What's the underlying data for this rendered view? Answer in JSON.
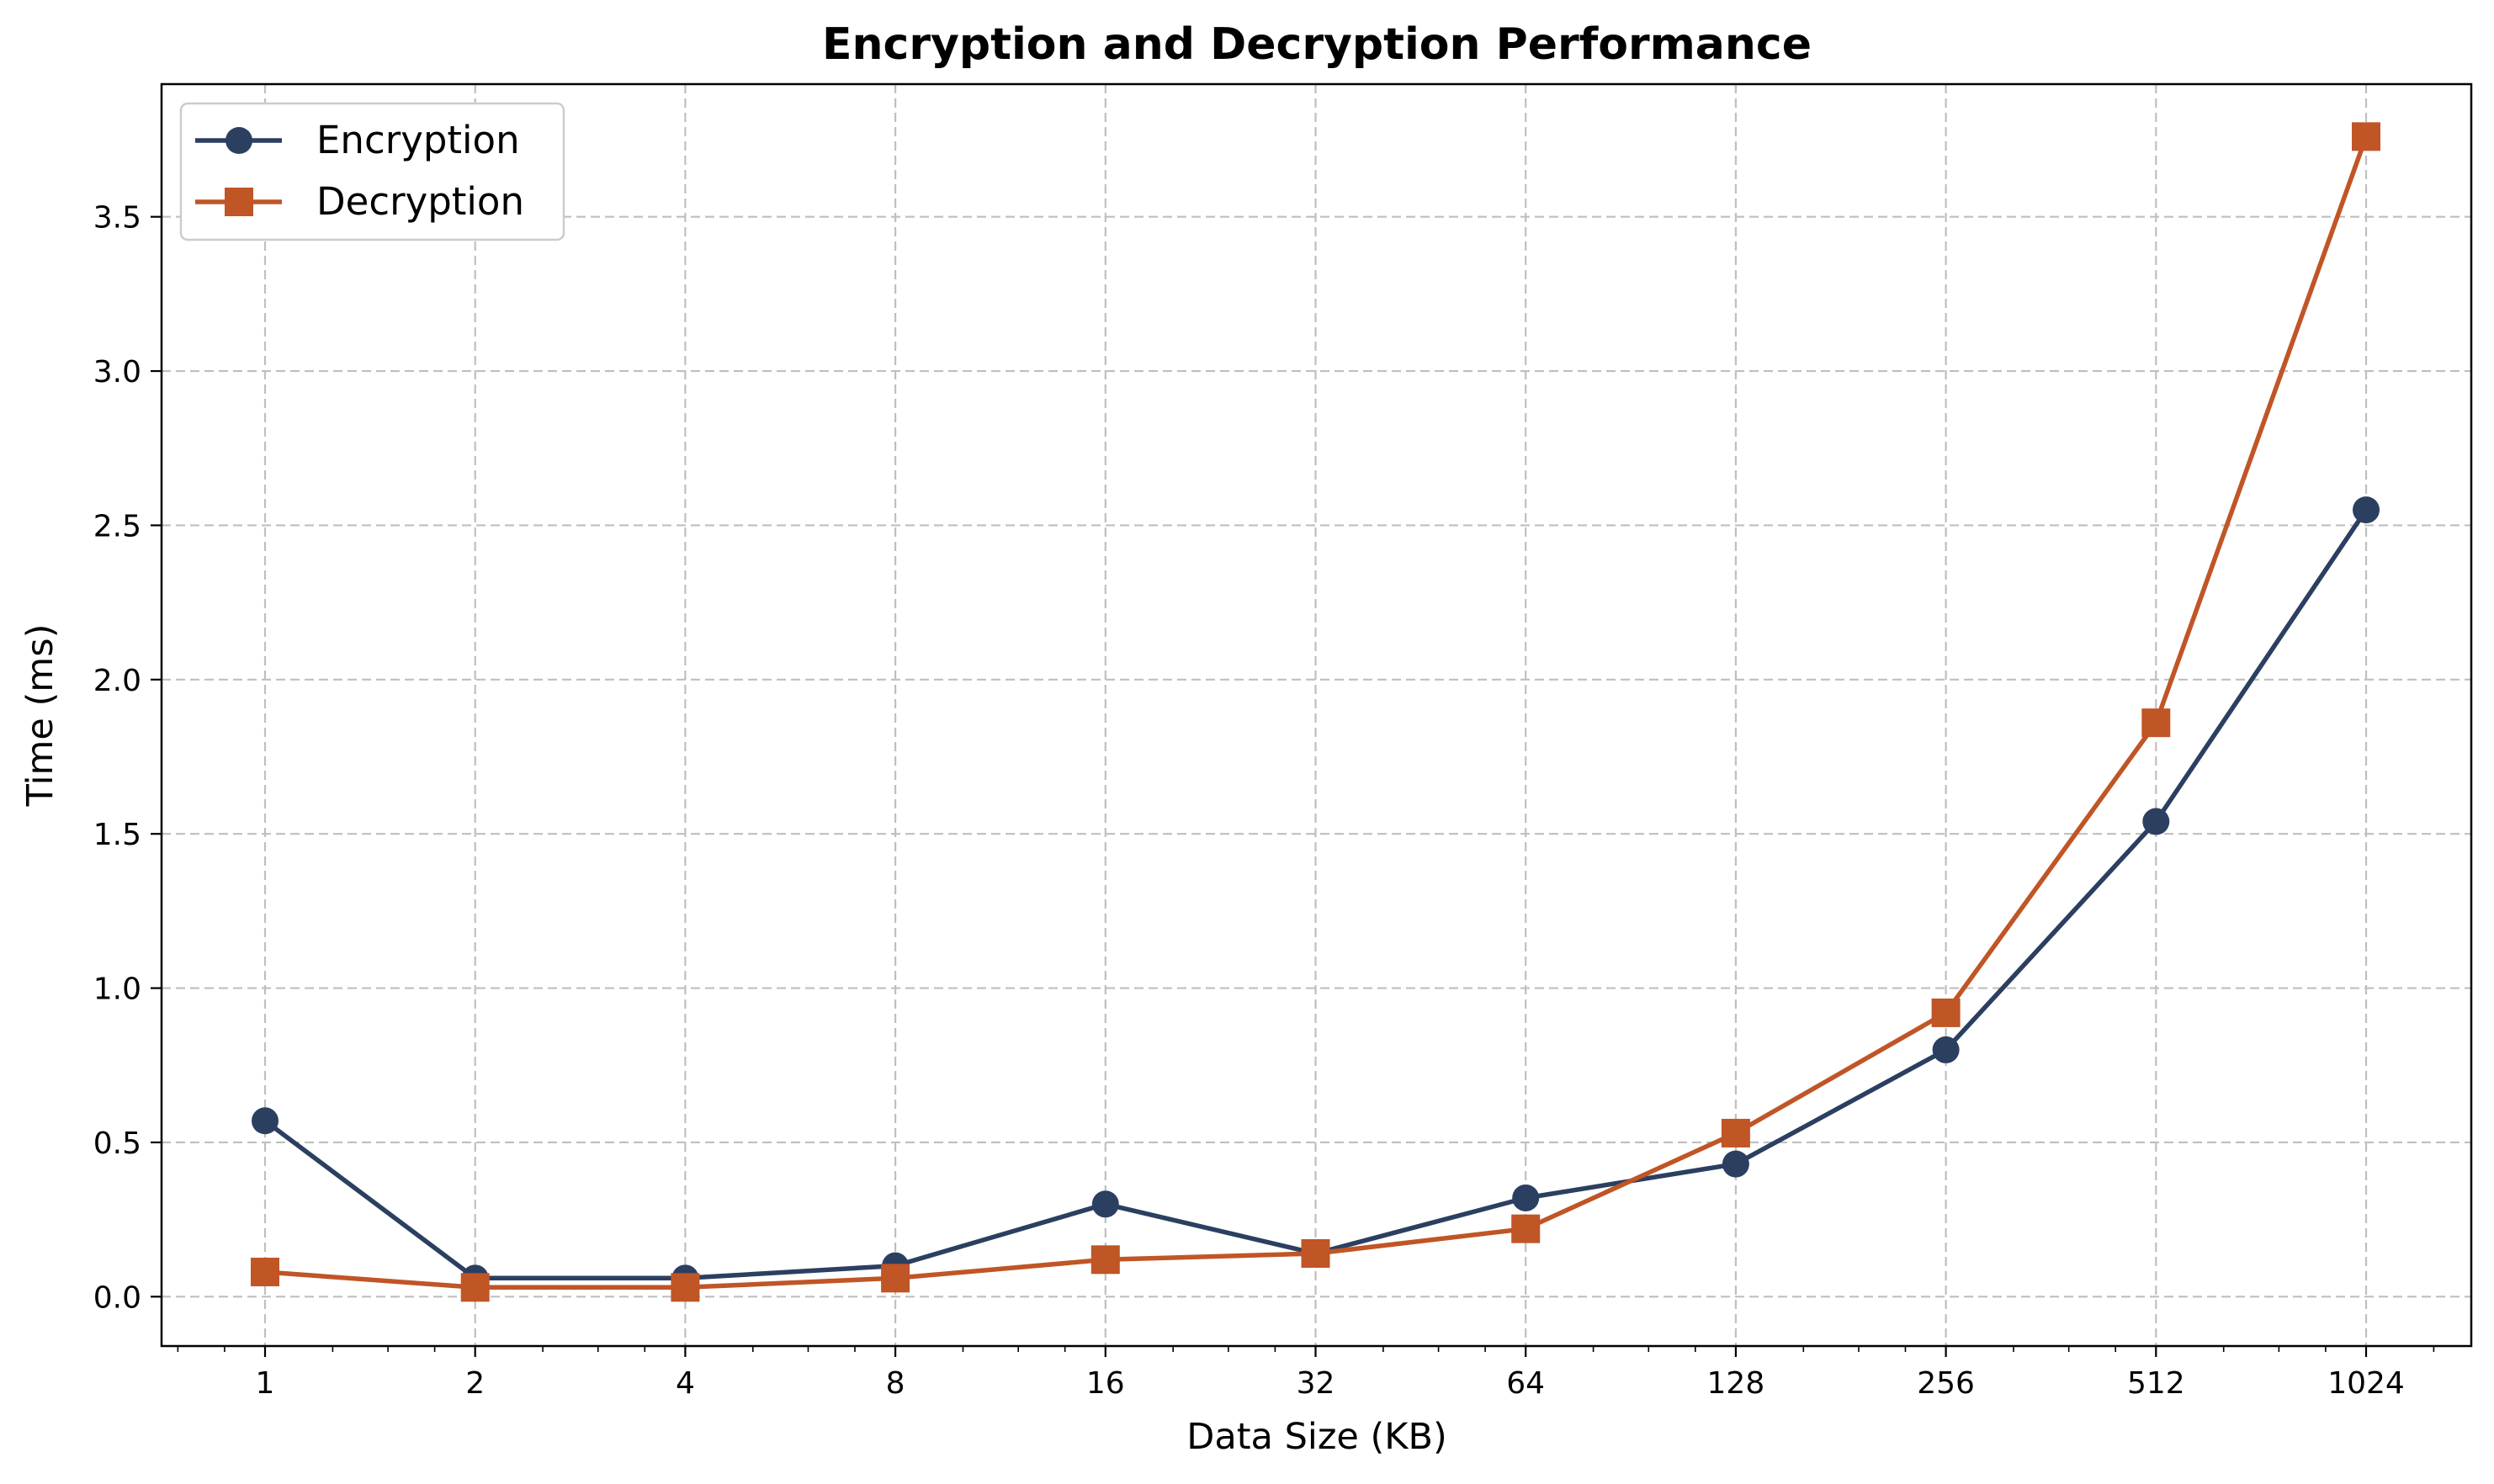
{
  "chart_data": {
    "type": "line",
    "title": "Encryption and Decryption Performance",
    "xlabel": "Data Size (KB)",
    "ylabel": "Time (ms)",
    "x_scale": "log2",
    "x": [
      1,
      2,
      4,
      8,
      16,
      32,
      64,
      128,
      256,
      512,
      1024
    ],
    "x_tick_labels": [
      "1",
      "2",
      "4",
      "8",
      "16",
      "32",
      "64",
      "128",
      "256",
      "512",
      "1024"
    ],
    "y_ticks": [
      0.0,
      0.5,
      1.0,
      1.5,
      2.0,
      2.5,
      3.0,
      3.5
    ],
    "y_tick_labels": [
      "0.0",
      "0.5",
      "1.0",
      "1.5",
      "2.0",
      "2.5",
      "3.0",
      "3.5"
    ],
    "ylim": [
      -0.16,
      3.93
    ],
    "grid": true,
    "legend_position": "top-left",
    "series": [
      {
        "name": "Encryption",
        "color": "#2b3f61",
        "marker": "circle",
        "values": [
          0.57,
          0.06,
          0.06,
          0.1,
          0.3,
          0.14,
          0.32,
          0.43,
          0.8,
          1.54,
          2.55
        ]
      },
      {
        "name": "Decryption",
        "color": "#c05526",
        "marker": "square",
        "values": [
          0.08,
          0.03,
          0.03,
          0.06,
          0.12,
          0.14,
          0.22,
          0.53,
          0.92,
          1.86,
          3.76
        ]
      }
    ]
  }
}
